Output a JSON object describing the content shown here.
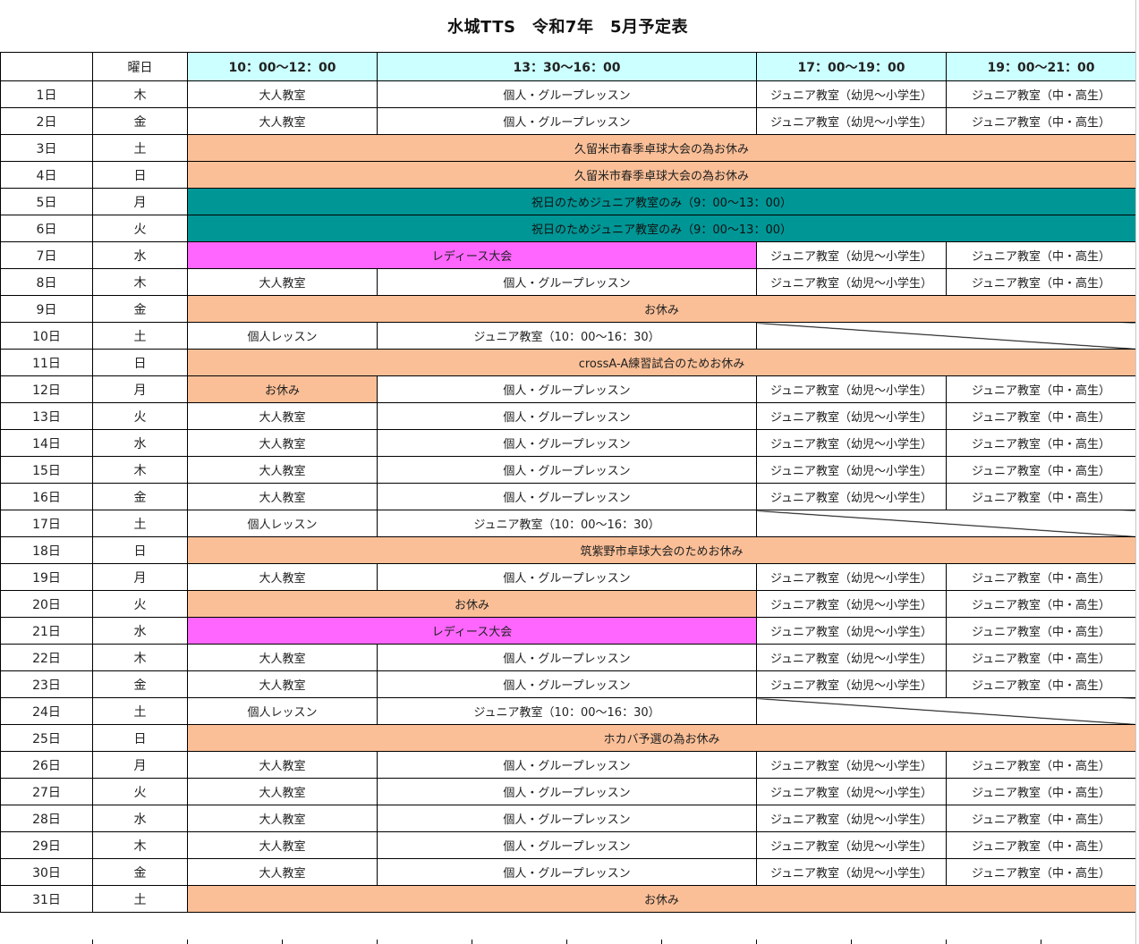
{
  "title": "水城TTS　令和7年　5月予定表",
  "header": {
    "date_col": "",
    "weekday_col": "曜日",
    "slots": [
      "10：00～12：00",
      "13：30～16：00",
      "17：00～19：00",
      "19：00～21：00"
    ]
  },
  "colors": {
    "header": "#ccffff",
    "rest": "#fbbf97",
    "holiday_junior": "#009696",
    "ladies": "#ff66ff"
  },
  "rows": [
    {
      "day": "1日",
      "wd": "木",
      "cells": [
        {
          "t": "大人教室",
          "s": 1
        },
        {
          "t": "個人・グループレッスン",
          "s": 1
        },
        {
          "t": "ジュニア教室（幼児～小学生）",
          "s": 1
        },
        {
          "t": "ジュニア教室（中・高生）",
          "s": 1
        }
      ]
    },
    {
      "day": "2日",
      "wd": "金",
      "cells": [
        {
          "t": "大人教室",
          "s": 1
        },
        {
          "t": "個人・グループレッスン",
          "s": 1
        },
        {
          "t": "ジュニア教室（幼児～小学生）",
          "s": 1
        },
        {
          "t": "ジュニア教室（中・高生）",
          "s": 1
        }
      ]
    },
    {
      "day": "3日",
      "wd": "土",
      "cells": [
        {
          "t": "久留米市春季卓球大会の為お休み",
          "s": 4,
          "c": "rest"
        }
      ]
    },
    {
      "day": "4日",
      "wd": "日",
      "cells": [
        {
          "t": "久留米市春季卓球大会の為お休み",
          "s": 4,
          "c": "rest"
        }
      ]
    },
    {
      "day": "5日",
      "wd": "月",
      "cells": [
        {
          "t": "祝日のためジュニア教室のみ（9：00～13：00）",
          "s": 4,
          "c": "teal"
        }
      ]
    },
    {
      "day": "6日",
      "wd": "火",
      "cells": [
        {
          "t": "祝日のためジュニア教室のみ（9：00～13：00）",
          "s": 4,
          "c": "teal"
        }
      ]
    },
    {
      "day": "7日",
      "wd": "水",
      "cells": [
        {
          "t": "レディース大会",
          "s": 2,
          "c": "pink"
        },
        {
          "t": "ジュニア教室（幼児～小学生）",
          "s": 1
        },
        {
          "t": "ジュニア教室（中・高生）",
          "s": 1
        }
      ]
    },
    {
      "day": "8日",
      "wd": "木",
      "cells": [
        {
          "t": "大人教室",
          "s": 1
        },
        {
          "t": "個人・グループレッスン",
          "s": 1
        },
        {
          "t": "ジュニア教室（幼児～小学生）",
          "s": 1
        },
        {
          "t": "ジュニア教室（中・高生）",
          "s": 1
        }
      ]
    },
    {
      "day": "9日",
      "wd": "金",
      "cells": [
        {
          "t": "お休み",
          "s": 4,
          "c": "rest"
        }
      ]
    },
    {
      "day": "10日",
      "wd": "土",
      "cells": [
        {
          "t": "個人レッスン",
          "s": 1
        },
        {
          "t": "ジュニア教室（10：00～16：30）",
          "s": 1
        },
        {
          "t": "",
          "s": 2,
          "c": "slash"
        }
      ]
    },
    {
      "day": "11日",
      "wd": "日",
      "cells": [
        {
          "t": "crossA-A練習試合のためお休み",
          "s": 4,
          "c": "rest"
        }
      ]
    },
    {
      "day": "12日",
      "wd": "月",
      "cells": [
        {
          "t": "お休み",
          "s": 1,
          "c": "rest"
        },
        {
          "t": "個人・グループレッスン",
          "s": 1
        },
        {
          "t": "ジュニア教室（幼児～小学生）",
          "s": 1
        },
        {
          "t": "ジュニア教室（中・高生）",
          "s": 1
        }
      ]
    },
    {
      "day": "13日",
      "wd": "火",
      "cells": [
        {
          "t": "大人教室",
          "s": 1
        },
        {
          "t": "個人・グループレッスン",
          "s": 1
        },
        {
          "t": "ジュニア教室（幼児～小学生）",
          "s": 1
        },
        {
          "t": "ジュニア教室（中・高生）",
          "s": 1
        }
      ]
    },
    {
      "day": "14日",
      "wd": "水",
      "cells": [
        {
          "t": "大人教室",
          "s": 1
        },
        {
          "t": "個人・グループレッスン",
          "s": 1
        },
        {
          "t": "ジュニア教室（幼児～小学生）",
          "s": 1
        },
        {
          "t": "ジュニア教室（中・高生）",
          "s": 1
        }
      ]
    },
    {
      "day": "15日",
      "wd": "木",
      "cells": [
        {
          "t": "大人教室",
          "s": 1
        },
        {
          "t": "個人・グループレッスン",
          "s": 1
        },
        {
          "t": "ジュニア教室（幼児～小学生）",
          "s": 1
        },
        {
          "t": "ジュニア教室（中・高生）",
          "s": 1
        }
      ]
    },
    {
      "day": "16日",
      "wd": "金",
      "cells": [
        {
          "t": "大人教室",
          "s": 1
        },
        {
          "t": "個人・グループレッスン",
          "s": 1
        },
        {
          "t": "ジュニア教室（幼児～小学生）",
          "s": 1
        },
        {
          "t": "ジュニア教室（中・高生）",
          "s": 1
        }
      ]
    },
    {
      "day": "17日",
      "wd": "土",
      "cells": [
        {
          "t": "個人レッスン",
          "s": 1
        },
        {
          "t": "ジュニア教室（10：00～16：30）",
          "s": 1
        },
        {
          "t": "",
          "s": 2,
          "c": "slash"
        }
      ]
    },
    {
      "day": "18日",
      "wd": "日",
      "cells": [
        {
          "t": "筑紫野市卓球大会のためお休み",
          "s": 4,
          "c": "rest"
        }
      ]
    },
    {
      "day": "19日",
      "wd": "月",
      "cells": [
        {
          "t": "大人教室",
          "s": 1
        },
        {
          "t": "個人・グループレッスン",
          "s": 1
        },
        {
          "t": "ジュニア教室（幼児～小学生）",
          "s": 1
        },
        {
          "t": "ジュニア教室（中・高生）",
          "s": 1
        }
      ]
    },
    {
      "day": "20日",
      "wd": "火",
      "cells": [
        {
          "t": "お休み",
          "s": 2,
          "c": "rest"
        },
        {
          "t": "ジュニア教室（幼児～小学生）",
          "s": 1
        },
        {
          "t": "ジュニア教室（中・高生）",
          "s": 1
        }
      ]
    },
    {
      "day": "21日",
      "wd": "水",
      "cells": [
        {
          "t": "レディース大会",
          "s": 2,
          "c": "pink"
        },
        {
          "t": "ジュニア教室（幼児～小学生）",
          "s": 1
        },
        {
          "t": "ジュニア教室（中・高生）",
          "s": 1
        }
      ]
    },
    {
      "day": "22日",
      "wd": "木",
      "cells": [
        {
          "t": "大人教室",
          "s": 1
        },
        {
          "t": "個人・グループレッスン",
          "s": 1
        },
        {
          "t": "ジュニア教室（幼児～小学生）",
          "s": 1
        },
        {
          "t": "ジュニア教室（中・高生）",
          "s": 1
        }
      ]
    },
    {
      "day": "23日",
      "wd": "金",
      "cells": [
        {
          "t": "大人教室",
          "s": 1
        },
        {
          "t": "個人・グループレッスン",
          "s": 1
        },
        {
          "t": "ジュニア教室（幼児～小学生）",
          "s": 1
        },
        {
          "t": "ジュニア教室（中・高生）",
          "s": 1
        }
      ]
    },
    {
      "day": "24日",
      "wd": "土",
      "cells": [
        {
          "t": "個人レッスン",
          "s": 1
        },
        {
          "t": "ジュニア教室（10：00～16：30）",
          "s": 1
        },
        {
          "t": "",
          "s": 2,
          "c": "slash"
        }
      ]
    },
    {
      "day": "25日",
      "wd": "日",
      "cells": [
        {
          "t": "ホカバ予選の為お休み",
          "s": 4,
          "c": "rest"
        }
      ]
    },
    {
      "day": "26日",
      "wd": "月",
      "cells": [
        {
          "t": "大人教室",
          "s": 1
        },
        {
          "t": "個人・グループレッスン",
          "s": 1
        },
        {
          "t": "ジュニア教室（幼児～小学生）",
          "s": 1
        },
        {
          "t": "ジュニア教室（中・高生）",
          "s": 1
        }
      ]
    },
    {
      "day": "27日",
      "wd": "火",
      "cells": [
        {
          "t": "大人教室",
          "s": 1
        },
        {
          "t": "個人・グループレッスン",
          "s": 1
        },
        {
          "t": "ジュニア教室（幼児～小学生）",
          "s": 1
        },
        {
          "t": "ジュニア教室（中・高生）",
          "s": 1
        }
      ]
    },
    {
      "day": "28日",
      "wd": "水",
      "cells": [
        {
          "t": "大人教室",
          "s": 1
        },
        {
          "t": "個人・グループレッスン",
          "s": 1
        },
        {
          "t": "ジュニア教室（幼児～小学生）",
          "s": 1
        },
        {
          "t": "ジュニア教室（中・高生）",
          "s": 1
        }
      ]
    },
    {
      "day": "29日",
      "wd": "木",
      "cells": [
        {
          "t": "大人教室",
          "s": 1
        },
        {
          "t": "個人・グループレッスン",
          "s": 1
        },
        {
          "t": "ジュニア教室（幼児～小学生）",
          "s": 1
        },
        {
          "t": "ジュニア教室（中・高生）",
          "s": 1
        }
      ]
    },
    {
      "day": "30日",
      "wd": "金",
      "cells": [
        {
          "t": "大人教室",
          "s": 1
        },
        {
          "t": "個人・グループレッスン",
          "s": 1
        },
        {
          "t": "ジュニア教室（幼児～小学生）",
          "s": 1
        },
        {
          "t": "ジュニア教室（中・高生）",
          "s": 1
        }
      ]
    },
    {
      "day": "31日",
      "wd": "土",
      "cells": [
        {
          "t": "お休み",
          "s": 4,
          "c": "rest"
        }
      ]
    }
  ]
}
